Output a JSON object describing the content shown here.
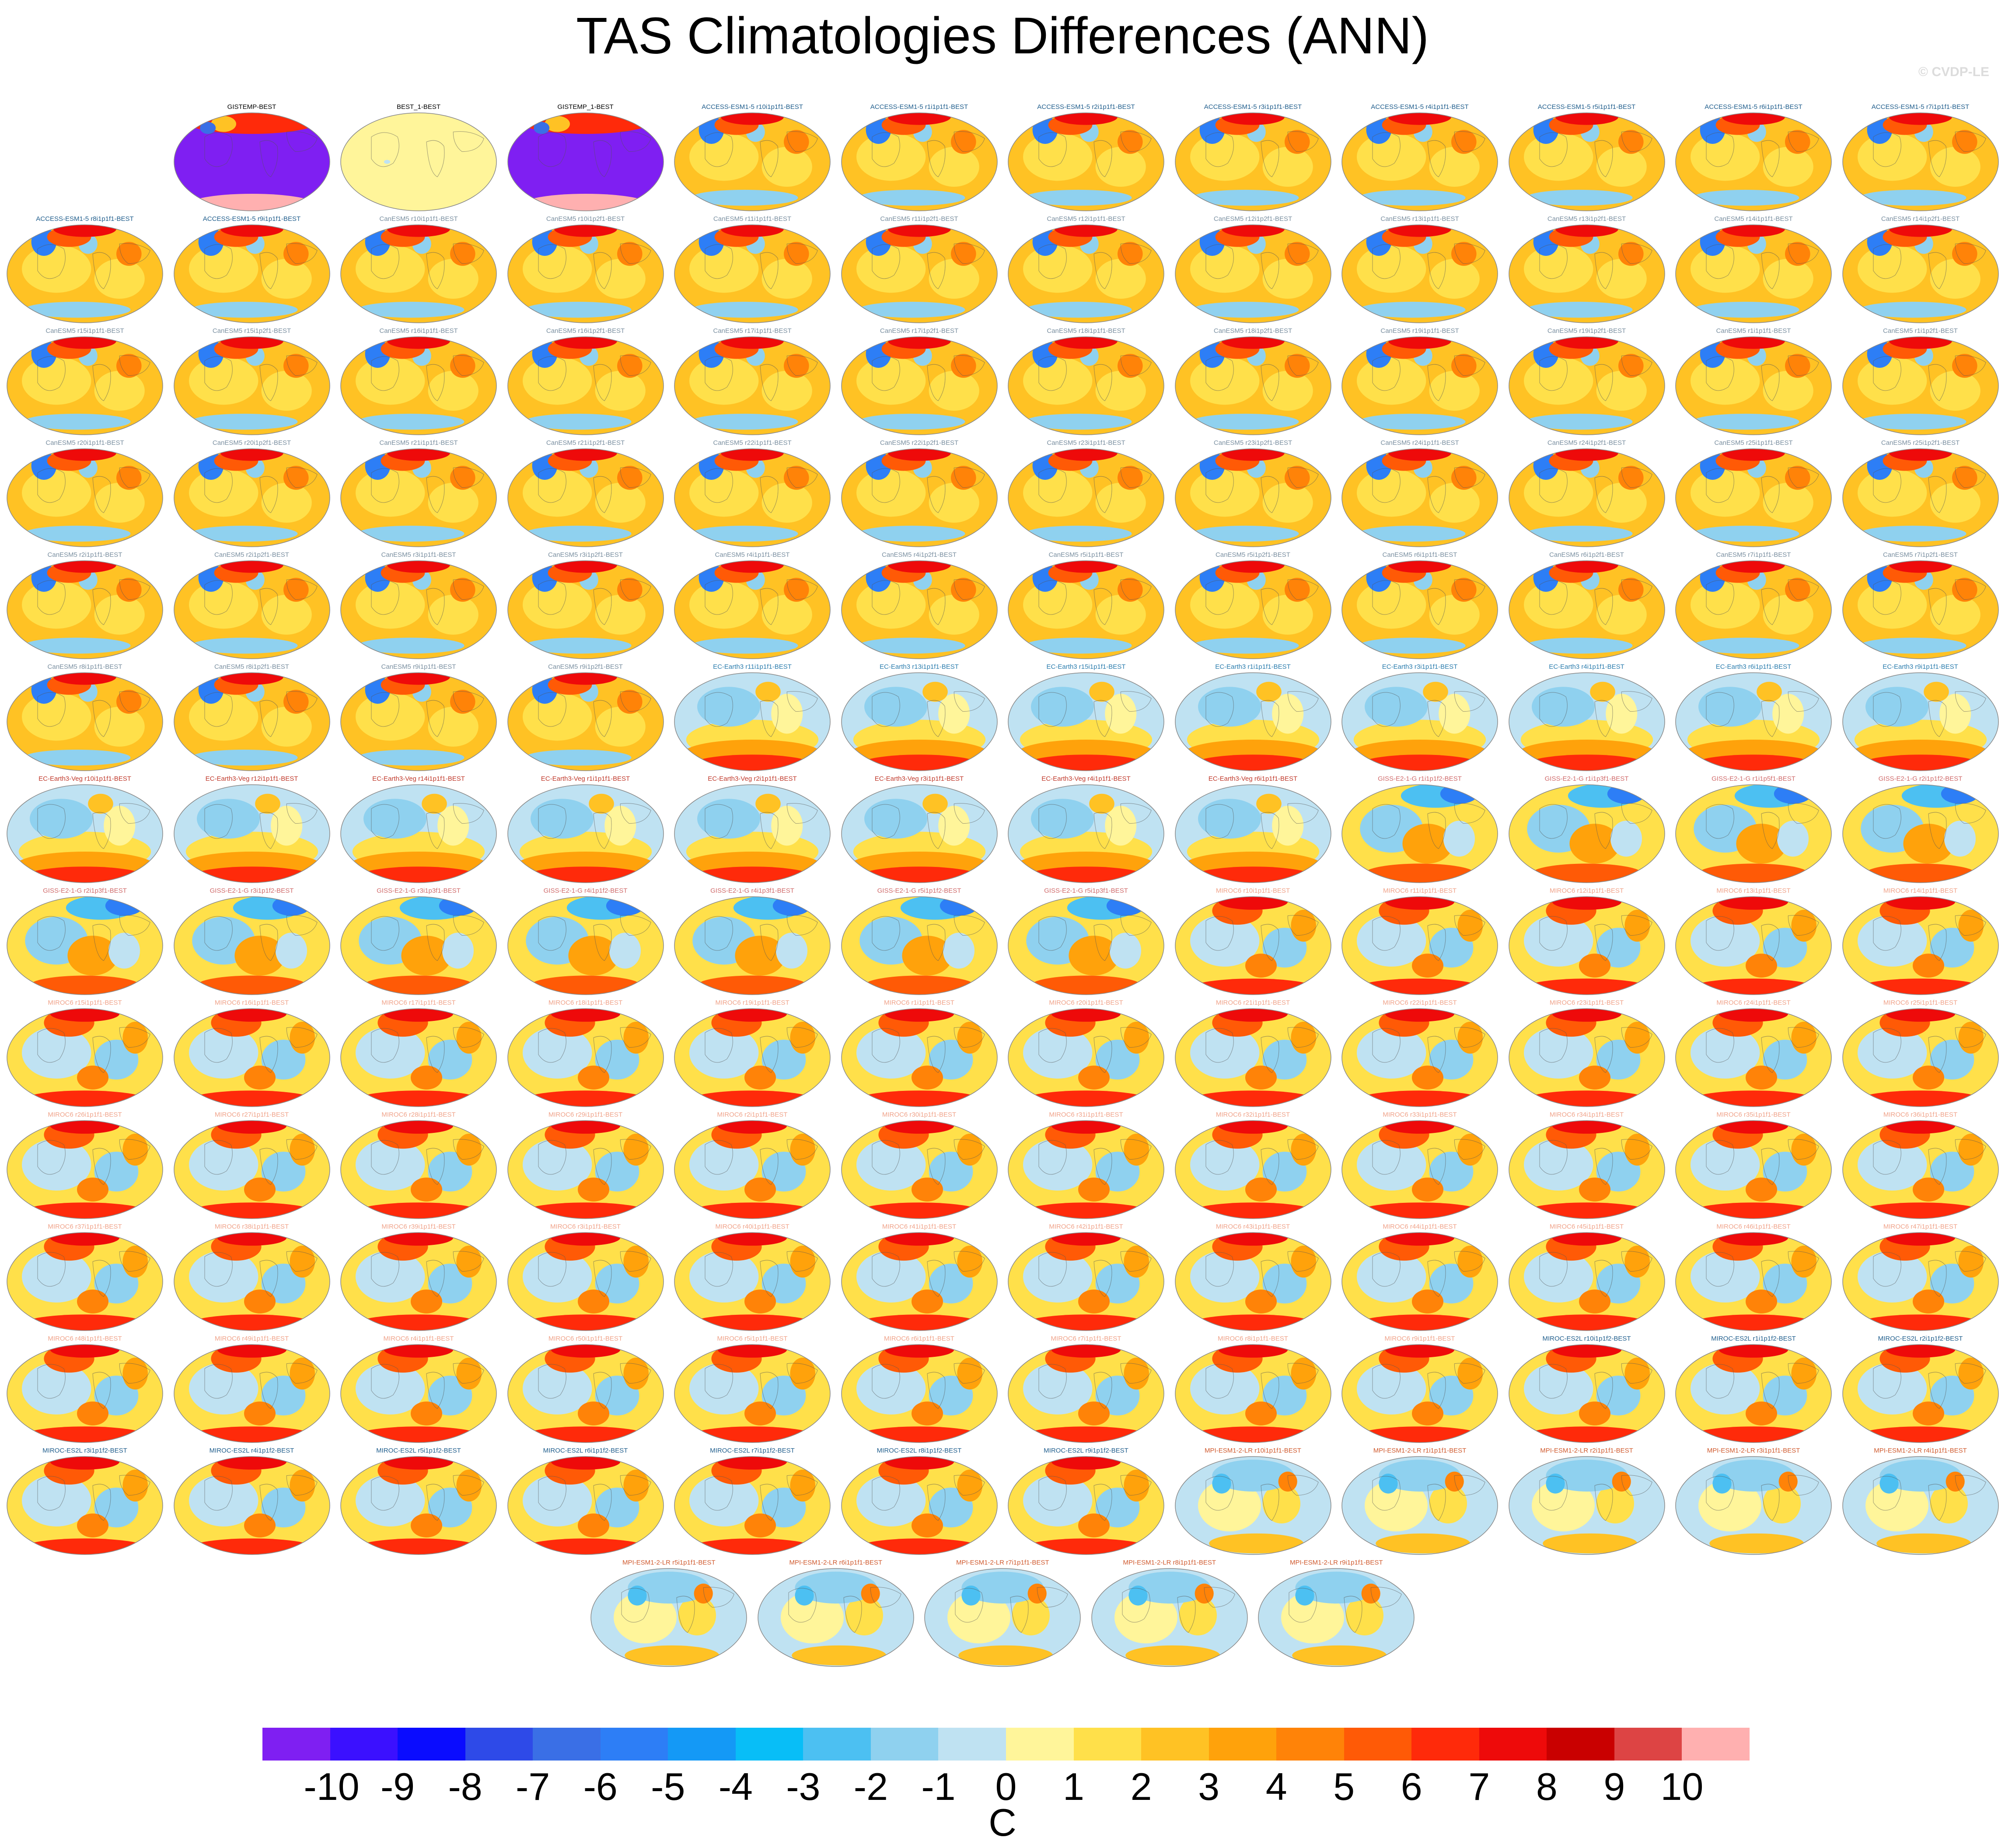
{
  "title": "TAS Climatologies Differences (ANN)",
  "watermark": "© CVDP-LE",
  "colors": {
    "CanESM5": "#7a8fa0",
    "ACCESS": "#1f5d8c",
    "EC-Earth3": "#2a7cad",
    "EC-Earth3-Veg": "#c0392b",
    "GISS": "#d06b6b",
    "MIROC6": "#f0a38a",
    "MIROC-ES2L": "#1f5d8c",
    "MPI": "#d05a2e",
    "OBS": "#000000"
  },
  "panels": [
    {
      "title": "GISTEMP-BEST",
      "style": "obs-purple",
      "group": "OBS"
    },
    {
      "title": "BEST_1-BEST",
      "style": "obs-zero",
      "group": "OBS"
    },
    {
      "title": "GISTEMP_1-BEST",
      "style": "obs-purple",
      "group": "OBS"
    },
    {
      "title": "ACCESS-ESM1-5 r10i1p1f1-BEST",
      "style": "warm",
      "group": "ACCESS"
    },
    {
      "title": "ACCESS-ESM1-5 r1i1p1f1-BEST",
      "style": "warm",
      "group": "ACCESS"
    },
    {
      "title": "ACCESS-ESM1-5 r2i1p1f1-BEST",
      "style": "warm",
      "group": "ACCESS"
    },
    {
      "title": "ACCESS-ESM1-5 r3i1p1f1-BEST",
      "style": "warm",
      "group": "ACCESS"
    },
    {
      "title": "ACCESS-ESM1-5 r4i1p1f1-BEST",
      "style": "warm",
      "group": "ACCESS"
    },
    {
      "title": "ACCESS-ESM1-5 r5i1p1f1-BEST",
      "style": "warm",
      "group": "ACCESS"
    },
    {
      "title": "ACCESS-ESM1-5 r6i1p1f1-BEST",
      "style": "warm",
      "group": "ACCESS"
    },
    {
      "title": "ACCESS-ESM1-5 r7i1p1f1-BEST",
      "style": "warm",
      "group": "ACCESS"
    },
    {
      "title": "ACCESS-ESM1-5 r8i1p1f1-BEST",
      "style": "warm",
      "group": "ACCESS"
    },
    {
      "title": "ACCESS-ESM1-5 r9i1p1f1-BEST",
      "style": "warm",
      "group": "ACCESS"
    },
    {
      "title": "CanESM5 r10i1p1f1-BEST",
      "style": "warm",
      "group": "CanESM5"
    },
    {
      "title": "CanESM5 r10i1p2f1-BEST",
      "style": "warm",
      "group": "CanESM5"
    },
    {
      "title": "CanESM5 r11i1p1f1-BEST",
      "style": "warm",
      "group": "CanESM5"
    },
    {
      "title": "CanESM5 r11i1p2f1-BEST",
      "style": "warm",
      "group": "CanESM5"
    },
    {
      "title": "CanESM5 r12i1p1f1-BEST",
      "style": "warm",
      "group": "CanESM5"
    },
    {
      "title": "CanESM5 r12i1p2f1-BEST",
      "style": "warm",
      "group": "CanESM5"
    },
    {
      "title": "CanESM5 r13i1p1f1-BEST",
      "style": "warm",
      "group": "CanESM5"
    },
    {
      "title": "CanESM5 r13i1p2f1-BEST",
      "style": "warm",
      "group": "CanESM5"
    },
    {
      "title": "CanESM5 r14i1p1f1-BEST",
      "style": "warm",
      "group": "CanESM5"
    },
    {
      "title": "CanESM5 r14i1p2f1-BEST",
      "style": "warm",
      "group": "CanESM5"
    },
    {
      "title": "CanESM5 r15i1p1f1-BEST",
      "style": "warm",
      "group": "CanESM5"
    },
    {
      "title": "CanESM5 r15i1p2f1-BEST",
      "style": "warm",
      "group": "CanESM5"
    },
    {
      "title": "CanESM5 r16i1p1f1-BEST",
      "style": "warm",
      "group": "CanESM5"
    },
    {
      "title": "CanESM5 r16i1p2f1-BEST",
      "style": "warm",
      "group": "CanESM5"
    },
    {
      "title": "CanESM5 r17i1p1f1-BEST",
      "style": "warm",
      "group": "CanESM5"
    },
    {
      "title": "CanESM5 r17i1p2f1-BEST",
      "style": "warm",
      "group": "CanESM5"
    },
    {
      "title": "CanESM5 r18i1p1f1-BEST",
      "style": "warm",
      "group": "CanESM5"
    },
    {
      "title": "CanESM5 r18i1p2f1-BEST",
      "style": "warm",
      "group": "CanESM5"
    },
    {
      "title": "CanESM5 r19i1p1f1-BEST",
      "style": "warm",
      "group": "CanESM5"
    },
    {
      "title": "CanESM5 r19i1p2f1-BEST",
      "style": "warm",
      "group": "CanESM5"
    },
    {
      "title": "CanESM5 r1i1p1f1-BEST",
      "style": "warm",
      "group": "CanESM5"
    },
    {
      "title": "CanESM5 r1i1p2f1-BEST",
      "style": "warm",
      "group": "CanESM5"
    },
    {
      "title": "CanESM5 r20i1p1f1-BEST",
      "style": "warm",
      "group": "CanESM5"
    },
    {
      "title": "CanESM5 r20i1p2f1-BEST",
      "style": "warm",
      "group": "CanESM5"
    },
    {
      "title": "CanESM5 r21i1p1f1-BEST",
      "style": "warm",
      "group": "CanESM5"
    },
    {
      "title": "CanESM5 r21i1p2f1-BEST",
      "style": "warm",
      "group": "CanESM5"
    },
    {
      "title": "CanESM5 r22i1p1f1-BEST",
      "style": "warm",
      "group": "CanESM5"
    },
    {
      "title": "CanESM5 r22i1p2f1-BEST",
      "style": "warm",
      "group": "CanESM5"
    },
    {
      "title": "CanESM5 r23i1p1f1-BEST",
      "style": "warm",
      "group": "CanESM5"
    },
    {
      "title": "CanESM5 r23i1p2f1-BEST",
      "style": "warm",
      "group": "CanESM5"
    },
    {
      "title": "CanESM5 r24i1p1f1-BEST",
      "style": "warm",
      "group": "CanESM5"
    },
    {
      "title": "CanESM5 r24i1p2f1-BEST",
      "style": "warm",
      "group": "CanESM5"
    },
    {
      "title": "CanESM5 r25i1p1f1-BEST",
      "style": "warm",
      "group": "CanESM5"
    },
    {
      "title": "CanESM5 r25i1p2f1-BEST",
      "style": "warm",
      "group": "CanESM5"
    },
    {
      "title": "CanESM5 r2i1p1f1-BEST",
      "style": "warm",
      "group": "CanESM5"
    },
    {
      "title": "CanESM5 r2i1p2f1-BEST",
      "style": "warm",
      "group": "CanESM5"
    },
    {
      "title": "CanESM5 r3i1p1f1-BEST",
      "style": "warm",
      "group": "CanESM5"
    },
    {
      "title": "CanESM5 r3i1p2f1-BEST",
      "style": "warm",
      "group": "CanESM5"
    },
    {
      "title": "CanESM5 r4i1p1f1-BEST",
      "style": "warm",
      "group": "CanESM5"
    },
    {
      "title": "CanESM5 r4i1p2f1-BEST",
      "style": "warm",
      "group": "CanESM5"
    },
    {
      "title": "CanESM5 r5i1p1f1-BEST",
      "style": "warm",
      "group": "CanESM5"
    },
    {
      "title": "CanESM5 r5i1p2f1-BEST",
      "style": "warm",
      "group": "CanESM5"
    },
    {
      "title": "CanESM5 r6i1p1f1-BEST",
      "style": "warm",
      "group": "CanESM5"
    },
    {
      "title": "CanESM5 r6i1p2f1-BEST",
      "style": "warm",
      "group": "CanESM5"
    },
    {
      "title": "CanESM5 r7i1p1f1-BEST",
      "style": "warm",
      "group": "CanESM5"
    },
    {
      "title": "CanESM5 r7i1p2f1-BEST",
      "style": "warm",
      "group": "CanESM5"
    },
    {
      "title": "CanESM5 r8i1p1f1-BEST",
      "style": "warm",
      "group": "CanESM5"
    },
    {
      "title": "CanESM5 r8i1p2f1-BEST",
      "style": "warm",
      "group": "CanESM5"
    },
    {
      "title": "CanESM5 r9i1p1f1-BEST",
      "style": "warm",
      "group": "CanESM5"
    },
    {
      "title": "CanESM5 r9i1p2f1-BEST",
      "style": "warm",
      "group": "CanESM5"
    },
    {
      "title": "EC-Earth3 r11i1p1f1-BEST",
      "style": "cool",
      "group": "EC-Earth3"
    },
    {
      "title": "EC-Earth3 r13i1p1f1-BEST",
      "style": "cool",
      "group": "EC-Earth3"
    },
    {
      "title": "EC-Earth3 r15i1p1f1-BEST",
      "style": "cool",
      "group": "EC-Earth3"
    },
    {
      "title": "EC-Earth3 r1i1p1f1-BEST",
      "style": "cool",
      "group": "EC-Earth3"
    },
    {
      "title": "EC-Earth3 r3i1p1f1-BEST",
      "style": "cool",
      "group": "EC-Earth3"
    },
    {
      "title": "EC-Earth3 r4i1p1f1-BEST",
      "style": "cool",
      "group": "EC-Earth3"
    },
    {
      "title": "EC-Earth3 r6i1p1f1-BEST",
      "style": "cool",
      "group": "EC-Earth3"
    },
    {
      "title": "EC-Earth3 r9i1p1f1-BEST",
      "style": "cool",
      "group": "EC-Earth3"
    },
    {
      "title": "EC-Earth3-Veg r10i1p1f1-BEST",
      "style": "cool",
      "group": "EC-Earth3-Veg"
    },
    {
      "title": "EC-Earth3-Veg r12i1p1f1-BEST",
      "style": "cool",
      "group": "EC-Earth3-Veg"
    },
    {
      "title": "EC-Earth3-Veg r14i1p1f1-BEST",
      "style": "cool",
      "group": "EC-Earth3-Veg"
    },
    {
      "title": "EC-Earth3-Veg r1i1p1f1-BEST",
      "style": "cool",
      "group": "EC-Earth3-Veg"
    },
    {
      "title": "EC-Earth3-Veg r2i1p1f1-BEST",
      "style": "cool",
      "group": "EC-Earth3-Veg"
    },
    {
      "title": "EC-Earth3-Veg r3i1p1f1-BEST",
      "style": "cool",
      "group": "EC-Earth3-Veg"
    },
    {
      "title": "EC-Earth3-Veg r4i1p1f1-BEST",
      "style": "cool",
      "group": "EC-Earth3-Veg"
    },
    {
      "title": "EC-Earth3-Veg r6i1p1f1-BEST",
      "style": "cool",
      "group": "EC-Earth3-Veg"
    },
    {
      "title": "GISS-E2-1-G r1i1p1f2-BEST",
      "style": "giss",
      "group": "GISS"
    },
    {
      "title": "GISS-E2-1-G r1i1p3f1-BEST",
      "style": "giss",
      "group": "GISS"
    },
    {
      "title": "GISS-E2-1-G r1i1p5f1-BEST",
      "style": "giss",
      "group": "GISS"
    },
    {
      "title": "GISS-E2-1-G r2i1p1f2-BEST",
      "style": "giss",
      "group": "GISS"
    },
    {
      "title": "GISS-E2-1-G r2i1p3f1-BEST",
      "style": "giss",
      "group": "GISS"
    },
    {
      "title": "GISS-E2-1-G r3i1p1f2-BEST",
      "style": "giss",
      "group": "GISS"
    },
    {
      "title": "GISS-E2-1-G r3i1p3f1-BEST",
      "style": "giss",
      "group": "GISS"
    },
    {
      "title": "GISS-E2-1-G r4i1p1f2-BEST",
      "style": "giss",
      "group": "GISS"
    },
    {
      "title": "GISS-E2-1-G r4i1p3f1-BEST",
      "style": "giss",
      "group": "GISS"
    },
    {
      "title": "GISS-E2-1-G r5i1p1f2-BEST",
      "style": "giss",
      "group": "GISS"
    },
    {
      "title": "GISS-E2-1-G r5i1p3f1-BEST",
      "style": "giss",
      "group": "GISS"
    },
    {
      "title": "MIROC6 r10i1p1f1-BEST",
      "style": "miroc",
      "group": "MIROC6"
    },
    {
      "title": "MIROC6 r11i1p1f1-BEST",
      "style": "miroc",
      "group": "MIROC6"
    },
    {
      "title": "MIROC6 r12i1p1f1-BEST",
      "style": "miroc",
      "group": "MIROC6"
    },
    {
      "title": "MIROC6 r13i1p1f1-BEST",
      "style": "miroc",
      "group": "MIROC6"
    },
    {
      "title": "MIROC6 r14i1p1f1-BEST",
      "style": "miroc",
      "group": "MIROC6"
    },
    {
      "title": "MIROC6 r15i1p1f1-BEST",
      "style": "miroc",
      "group": "MIROC6"
    },
    {
      "title": "MIROC6 r16i1p1f1-BEST",
      "style": "miroc",
      "group": "MIROC6"
    },
    {
      "title": "MIROC6 r17i1p1f1-BEST",
      "style": "miroc",
      "group": "MIROC6"
    },
    {
      "title": "MIROC6 r18i1p1f1-BEST",
      "style": "miroc",
      "group": "MIROC6"
    },
    {
      "title": "MIROC6 r19i1p1f1-BEST",
      "style": "miroc",
      "group": "MIROC6"
    },
    {
      "title": "MIROC6 r1i1p1f1-BEST",
      "style": "miroc",
      "group": "MIROC6"
    },
    {
      "title": "MIROC6 r20i1p1f1-BEST",
      "style": "miroc",
      "group": "MIROC6"
    },
    {
      "title": "MIROC6 r21i1p1f1-BEST",
      "style": "miroc",
      "group": "MIROC6"
    },
    {
      "title": "MIROC6 r22i1p1f1-BEST",
      "style": "miroc",
      "group": "MIROC6"
    },
    {
      "title": "MIROC6 r23i1p1f1-BEST",
      "style": "miroc",
      "group": "MIROC6"
    },
    {
      "title": "MIROC6 r24i1p1f1-BEST",
      "style": "miroc",
      "group": "MIROC6"
    },
    {
      "title": "MIROC6 r25i1p1f1-BEST",
      "style": "miroc",
      "group": "MIROC6"
    },
    {
      "title": "MIROC6 r26i1p1f1-BEST",
      "style": "miroc",
      "group": "MIROC6"
    },
    {
      "title": "MIROC6 r27i1p1f1-BEST",
      "style": "miroc",
      "group": "MIROC6"
    },
    {
      "title": "MIROC6 r28i1p1f1-BEST",
      "style": "miroc",
      "group": "MIROC6"
    },
    {
      "title": "MIROC6 r29i1p1f1-BEST",
      "style": "miroc",
      "group": "MIROC6"
    },
    {
      "title": "MIROC6 r2i1p1f1-BEST",
      "style": "miroc",
      "group": "MIROC6"
    },
    {
      "title": "MIROC6 r30i1p1f1-BEST",
      "style": "miroc",
      "group": "MIROC6"
    },
    {
      "title": "MIROC6 r31i1p1f1-BEST",
      "style": "miroc",
      "group": "MIROC6"
    },
    {
      "title": "MIROC6 r32i1p1f1-BEST",
      "style": "miroc",
      "group": "MIROC6"
    },
    {
      "title": "MIROC6 r33i1p1f1-BEST",
      "style": "miroc",
      "group": "MIROC6"
    },
    {
      "title": "MIROC6 r34i1p1f1-BEST",
      "style": "miroc",
      "group": "MIROC6"
    },
    {
      "title": "MIROC6 r35i1p1f1-BEST",
      "style": "miroc",
      "group": "MIROC6"
    },
    {
      "title": "MIROC6 r36i1p1f1-BEST",
      "style": "miroc",
      "group": "MIROC6"
    },
    {
      "title": "MIROC6 r37i1p1f1-BEST",
      "style": "miroc",
      "group": "MIROC6"
    },
    {
      "title": "MIROC6 r38i1p1f1-BEST",
      "style": "miroc",
      "group": "MIROC6"
    },
    {
      "title": "MIROC6 r39i1p1f1-BEST",
      "style": "miroc",
      "group": "MIROC6"
    },
    {
      "title": "MIROC6 r3i1p1f1-BEST",
      "style": "miroc",
      "group": "MIROC6"
    },
    {
      "title": "MIROC6 r40i1p1f1-BEST",
      "style": "miroc",
      "group": "MIROC6"
    },
    {
      "title": "MIROC6 r41i1p1f1-BEST",
      "style": "miroc",
      "group": "MIROC6"
    },
    {
      "title": "MIROC6 r42i1p1f1-BEST",
      "style": "miroc",
      "group": "MIROC6"
    },
    {
      "title": "MIROC6 r43i1p1f1-BEST",
      "style": "miroc",
      "group": "MIROC6"
    },
    {
      "title": "MIROC6 r44i1p1f1-BEST",
      "style": "miroc",
      "group": "MIROC6"
    },
    {
      "title": "MIROC6 r45i1p1f1-BEST",
      "style": "miroc",
      "group": "MIROC6"
    },
    {
      "title": "MIROC6 r46i1p1f1-BEST",
      "style": "miroc",
      "group": "MIROC6"
    },
    {
      "title": "MIROC6 r47i1p1f1-BEST",
      "style": "miroc",
      "group": "MIROC6"
    },
    {
      "title": "MIROC6 r48i1p1f1-BEST",
      "style": "miroc",
      "group": "MIROC6"
    },
    {
      "title": "MIROC6 r49i1p1f1-BEST",
      "style": "miroc",
      "group": "MIROC6"
    },
    {
      "title": "MIROC6 r4i1p1f1-BEST",
      "style": "miroc",
      "group": "MIROC6"
    },
    {
      "title": "MIROC6 r50i1p1f1-BEST",
      "style": "miroc",
      "group": "MIROC6"
    },
    {
      "title": "MIROC6 r5i1p1f1-BEST",
      "style": "miroc",
      "group": "MIROC6"
    },
    {
      "title": "MIROC6 r6i1p1f1-BEST",
      "style": "miroc",
      "group": "MIROC6"
    },
    {
      "title": "MIROC6 r7i1p1f1-BEST",
      "style": "miroc",
      "group": "MIROC6"
    },
    {
      "title": "MIROC6 r8i1p1f1-BEST",
      "style": "miroc",
      "group": "MIROC6"
    },
    {
      "title": "MIROC6 r9i1p1f1-BEST",
      "style": "miroc",
      "group": "MIROC6"
    },
    {
      "title": "MIROC-ES2L r10i1p1f2-BEST",
      "style": "miroc",
      "group": "MIROC-ES2L"
    },
    {
      "title": "MIROC-ES2L r1i1p1f2-BEST",
      "style": "miroc",
      "group": "MIROC-ES2L"
    },
    {
      "title": "MIROC-ES2L r2i1p1f2-BEST",
      "style": "miroc",
      "group": "MIROC-ES2L"
    },
    {
      "title": "MIROC-ES2L r3i1p1f2-BEST",
      "style": "miroc",
      "group": "MIROC-ES2L"
    },
    {
      "title": "MIROC-ES2L r4i1p1f2-BEST",
      "style": "miroc",
      "group": "MIROC-ES2L"
    },
    {
      "title": "MIROC-ES2L r5i1p1f2-BEST",
      "style": "miroc",
      "group": "MIROC-ES2L"
    },
    {
      "title": "MIROC-ES2L r6i1p1f2-BEST",
      "style": "miroc",
      "group": "MIROC-ES2L"
    },
    {
      "title": "MIROC-ES2L r7i1p1f2-BEST",
      "style": "miroc",
      "group": "MIROC-ES2L"
    },
    {
      "title": "MIROC-ES2L r8i1p1f2-BEST",
      "style": "miroc",
      "group": "MIROC-ES2L"
    },
    {
      "title": "MIROC-ES2L r9i1p1f2-BEST",
      "style": "miroc",
      "group": "MIROC-ES2L"
    },
    {
      "title": "MPI-ESM1-2-LR r10i1p1f1-BEST",
      "style": "mpi",
      "group": "MPI"
    },
    {
      "title": "MPI-ESM1-2-LR r1i1p1f1-BEST",
      "style": "mpi",
      "group": "MPI"
    },
    {
      "title": "MPI-ESM1-2-LR r2i1p1f1-BEST",
      "style": "mpi",
      "group": "MPI"
    },
    {
      "title": "MPI-ESM1-2-LR r3i1p1f1-BEST",
      "style": "mpi",
      "group": "MPI"
    },
    {
      "title": "MPI-ESM1-2-LR r4i1p1f1-BEST",
      "style": "mpi",
      "group": "MPI"
    },
    {
      "title": "MPI-ESM1-2-LR r5i1p1f1-BEST",
      "style": "mpi",
      "group": "MPI"
    },
    {
      "title": "MPI-ESM1-2-LR r6i1p1f1-BEST",
      "style": "mpi",
      "group": "MPI"
    },
    {
      "title": "MPI-ESM1-2-LR r7i1p1f1-BEST",
      "style": "mpi",
      "group": "MPI"
    },
    {
      "title": "MPI-ESM1-2-LR r8i1p1f1-BEST",
      "style": "mpi",
      "group": "MPI"
    },
    {
      "title": "MPI-ESM1-2-LR r9i1p1f1-BEST",
      "style": "mpi",
      "group": "MPI"
    }
  ],
  "colorbar": {
    "colors": [
      "#7f1ff2",
      "#3b10ff",
      "#0a0cff",
      "#2e4ae8",
      "#3a6fe6",
      "#2d7ef6",
      "#1499f6",
      "#08bef7",
      "#4cc0f2",
      "#8fd1ef",
      "#bfe2f2",
      "#fff59a",
      "#ffe04a",
      "#ffc224",
      "#ffa20b",
      "#ff8308",
      "#ff5a06",
      "#ff2a0a",
      "#ee0a0a",
      "#c90000",
      "#dd4444",
      "#ffb0b0"
    ],
    "labels": [
      "-10",
      "-9",
      "-8",
      "-7",
      "-6",
      "-5",
      "-4",
      "-3",
      "-2",
      "-1",
      "0",
      "1",
      "2",
      "3",
      "4",
      "5",
      "6",
      "7",
      "8",
      "9",
      "10"
    ],
    "units": "C"
  }
}
